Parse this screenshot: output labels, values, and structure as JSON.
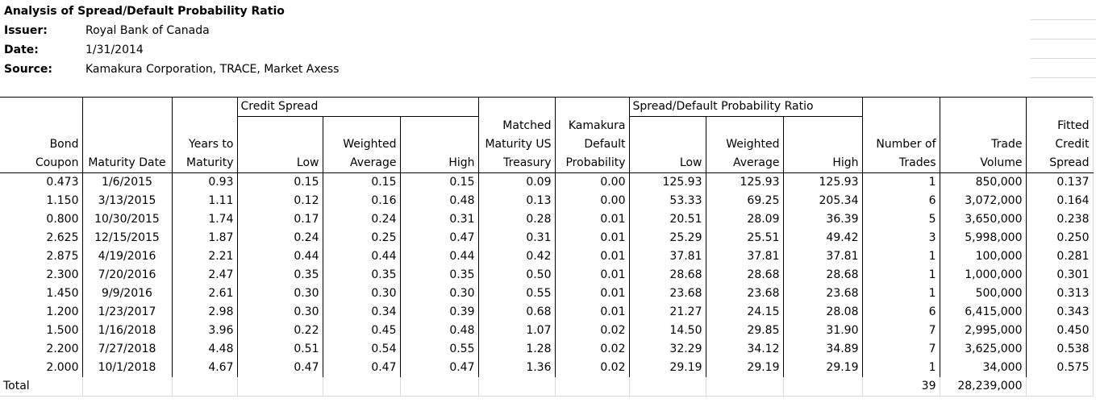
{
  "header": {
    "title": "Analysis of Spread/Default Probability Ratio",
    "issuer_label": "Issuer:",
    "issuer_value": "Royal Bank of Canada",
    "date_label": "Date:",
    "date_value": "1/31/2014",
    "source_label": "Source:",
    "source_value": "Kamakura Corporation, TRACE, Market Axess"
  },
  "groups": {
    "credit_spread": "Credit Spread",
    "ratio": "Spread/Default Probability Ratio"
  },
  "columns": [
    [
      "",
      "",
      "Bond",
      "Coupon"
    ],
    [
      "",
      "",
      "",
      "Maturity Date"
    ],
    [
      "",
      "",
      "Years to",
      "Maturity"
    ],
    [
      "",
      "",
      "",
      "Low"
    ],
    [
      "",
      "",
      "Weighted",
      "Average"
    ],
    [
      "",
      "",
      "",
      "High"
    ],
    [
      "",
      "Matched",
      "Maturity US",
      "Treasury"
    ],
    [
      "",
      "Kamakura",
      "Default",
      "Probability"
    ],
    [
      "",
      "",
      "",
      "Low"
    ],
    [
      "",
      "",
      "Weighted",
      "Average"
    ],
    [
      "",
      "",
      "",
      "High"
    ],
    [
      "",
      "",
      "Number of",
      "Trades"
    ],
    [
      "",
      "",
      "Trade",
      "Volume"
    ],
    [
      "",
      "Fitted",
      "Credit",
      "Spread"
    ]
  ],
  "rows": [
    [
      "0.473",
      "1/6/2015",
      "0.93",
      "0.15",
      "0.15",
      "0.15",
      "0.09",
      "0.00",
      "125.93",
      "125.93",
      "125.93",
      "1",
      "850,000",
      "0.137"
    ],
    [
      "1.150",
      "3/13/2015",
      "1.11",
      "0.12",
      "0.16",
      "0.48",
      "0.13",
      "0.00",
      "53.33",
      "69.25",
      "205.34",
      "6",
      "3,072,000",
      "0.164"
    ],
    [
      "0.800",
      "10/30/2015",
      "1.74",
      "0.17",
      "0.24",
      "0.31",
      "0.28",
      "0.01",
      "20.51",
      "28.09",
      "36.39",
      "5",
      "3,650,000",
      "0.238"
    ],
    [
      "2.625",
      "12/15/2015",
      "1.87",
      "0.24",
      "0.25",
      "0.47",
      "0.31",
      "0.01",
      "25.29",
      "25.51",
      "49.42",
      "3",
      "5,998,000",
      "0.250"
    ],
    [
      "2.875",
      "4/19/2016",
      "2.21",
      "0.44",
      "0.44",
      "0.44",
      "0.42",
      "0.01",
      "37.81",
      "37.81",
      "37.81",
      "1",
      "100,000",
      "0.281"
    ],
    [
      "2.300",
      "7/20/2016",
      "2.47",
      "0.35",
      "0.35",
      "0.35",
      "0.50",
      "0.01",
      "28.68",
      "28.68",
      "28.68",
      "1",
      "1,000,000",
      "0.301"
    ],
    [
      "1.450",
      "9/9/2016",
      "2.61",
      "0.30",
      "0.30",
      "0.30",
      "0.55",
      "0.01",
      "23.68",
      "23.68",
      "23.68",
      "1",
      "500,000",
      "0.313"
    ],
    [
      "1.200",
      "1/23/2017",
      "2.98",
      "0.30",
      "0.34",
      "0.39",
      "0.68",
      "0.01",
      "21.27",
      "24.15",
      "28.08",
      "6",
      "6,415,000",
      "0.343"
    ],
    [
      "1.500",
      "1/16/2018",
      "3.96",
      "0.22",
      "0.45",
      "0.48",
      "1.07",
      "0.02",
      "14.50",
      "29.85",
      "31.90",
      "7",
      "2,995,000",
      "0.450"
    ],
    [
      "2.200",
      "7/27/2018",
      "4.48",
      "0.51",
      "0.54",
      "0.55",
      "1.28",
      "0.02",
      "32.29",
      "34.12",
      "34.89",
      "7",
      "3,625,000",
      "0.538"
    ],
    [
      "2.000",
      "10/1/2018",
      "4.67",
      "0.47",
      "0.47",
      "0.47",
      "1.36",
      "0.02",
      "29.19",
      "29.19",
      "29.19",
      "1",
      "34,000",
      "0.575"
    ]
  ],
  "total": {
    "label": "Total",
    "trades": "39",
    "volume": "28,239,000"
  }
}
